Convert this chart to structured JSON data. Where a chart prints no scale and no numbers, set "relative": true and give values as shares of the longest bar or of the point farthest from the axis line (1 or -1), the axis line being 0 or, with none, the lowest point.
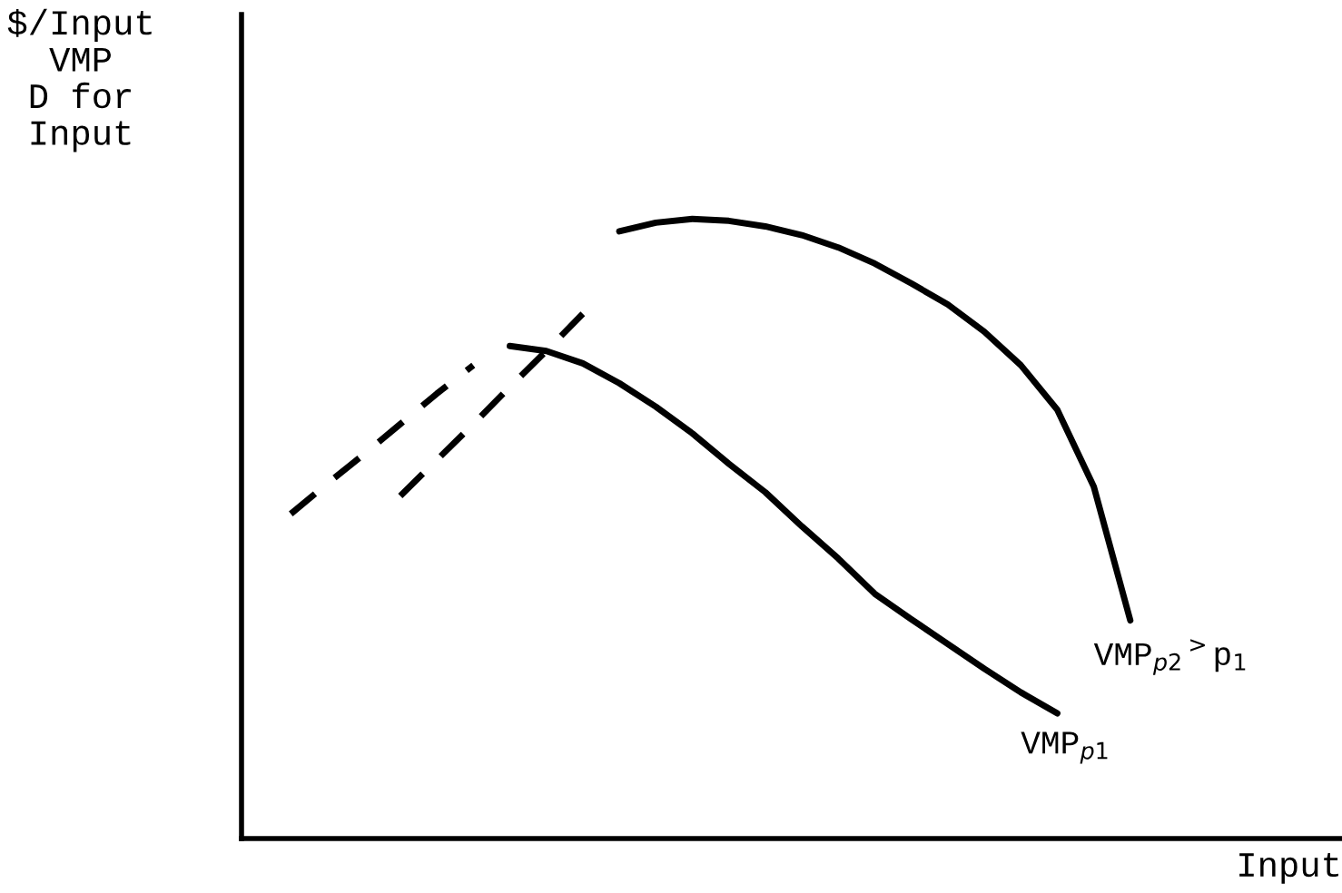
{
  "chart_data": {
    "type": "line",
    "relative": true,
    "legend": false,
    "marker": "none",
    "ylabel": "$/Input\nVMP\nD for\nInput",
    "xlabel": "Input",
    "categories": [
      null,
      null,
      null,
      null,
      null,
      null,
      null,
      null,
      null,
      null,
      null,
      null,
      null,
      null,
      null,
      null,
      null,
      null,
      null,
      null,
      null,
      null,
      null,
      null,
      null,
      null,
      null,
      null,
      null,
      null
    ],
    "series": [
      {
        "color": "#000000",
        "line_style": "dashed",
        "values": [
          null,
          0.524,
          0.573,
          0.62,
          0.669,
          0.718,
          0.764,
          null,
          null,
          null,
          null,
          null,
          null,
          null,
          null,
          null,
          null,
          null,
          null,
          null,
          null,
          null,
          null,
          null,
          null,
          null,
          null,
          null,
          null,
          null
        ]
      },
      {
        "name": "VMP$_{p1}$",
        "color": "#000000",
        "line_style": "solid",
        "values": [
          null,
          null,
          null,
          null,
          null,
          null,
          null,
          0.795,
          0.787,
          0.767,
          0.735,
          0.697,
          0.654,
          0.605,
          0.559,
          0.504,
          0.452,
          0.395,
          0.354,
          0.314,
          0.274,
          0.236,
          0.202,
          null,
          null,
          null,
          null,
          null,
          null,
          null
        ]
      },
      {
        "color": "#000000",
        "line_style": "dashed",
        "values": [
          null,
          null,
          null,
          null,
          0.553,
          0.611,
          0.669,
          0.729,
          0.787,
          0.847,
          null,
          null,
          null,
          null,
          null,
          null,
          null,
          null,
          null,
          null,
          null,
          null,
          null,
          null,
          null,
          null,
          null,
          null,
          null,
          null
        ]
      },
      {
        "name": "VMP$_{p2}$$^{>}$p$_{1}$",
        "color": "#000000",
        "line_style": "solid",
        "values": [
          null,
          null,
          null,
          null,
          null,
          null,
          null,
          null,
          null,
          null,
          0.98,
          0.994,
          1.0,
          0.997,
          0.988,
          0.974,
          0.954,
          0.928,
          0.896,
          0.862,
          0.818,
          0.764,
          0.692,
          0.568,
          0.352,
          null,
          null,
          null,
          null,
          null
        ]
      }
    ]
  }
}
